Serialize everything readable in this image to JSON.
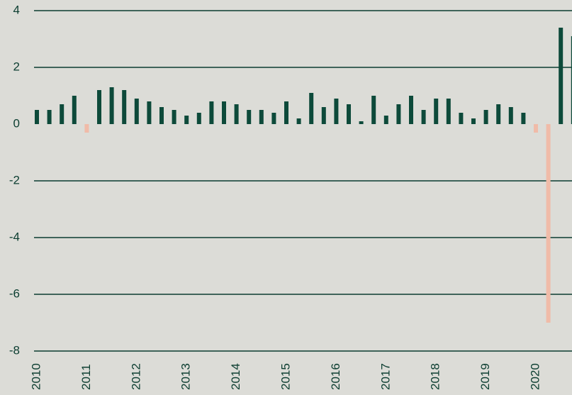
{
  "chart_data": {
    "type": "bar",
    "categories": [
      "2010",
      null,
      null,
      null,
      "2011",
      null,
      null,
      null,
      "2012",
      null,
      null,
      null,
      "2013",
      null,
      null,
      null,
      "2014",
      null,
      null,
      null,
      "2015",
      null,
      null,
      null,
      "2016",
      null,
      null,
      null,
      "2017",
      null,
      null,
      null,
      "2018",
      null,
      null,
      null,
      "2019",
      null,
      null,
      null,
      "2020",
      null,
      null,
      null
    ],
    "values": [
      0.5,
      0.5,
      0.7,
      1.0,
      -0.3,
      1.2,
      1.3,
      1.2,
      0.9,
      0.8,
      0.6,
      0.5,
      0.3,
      0.4,
      0.8,
      0.8,
      0.7,
      0.5,
      0.5,
      0.4,
      0.8,
      0.2,
      1.1,
      0.6,
      0.9,
      0.7,
      0.1,
      1.0,
      0.3,
      0.7,
      1.0,
      0.5,
      0.9,
      0.9,
      0.4,
      0.2,
      0.5,
      0.7,
      0.6,
      0.4,
      -0.3,
      -7.0,
      3.4,
      3.1
    ],
    "color": "#0d4a3a",
    "negative_color": "#f0bba8",
    "ylim": [
      -8,
      4
    ],
    "yticks": [
      -8,
      -6,
      -4,
      -2,
      0,
      2,
      4
    ],
    "grid": true
  }
}
